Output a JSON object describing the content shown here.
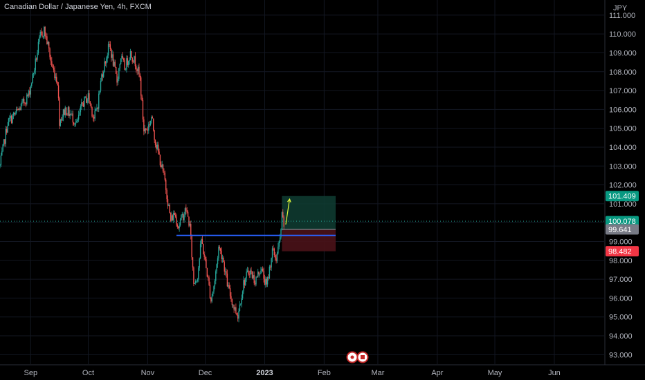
{
  "header": {
    "title": "Canadian Dollar / Japanese Yen, 4h, FXCM"
  },
  "axis": {
    "currency_label": "JPY"
  },
  "markers": {
    "event_icons": [
      "red-flag-icon",
      "red-flag-icon"
    ]
  },
  "colors": {
    "background": "#000000",
    "up_candle": "#26a69a",
    "down_candle": "#ef5350",
    "support_line": "#2962ff",
    "target_arrow": "#e6ff3b",
    "profit_zone": "#0f3d33",
    "loss_zone": "#4a1218",
    "tp_tag": "#089981",
    "sl_tag": "#f23645",
    "entry_tag": "#787b86",
    "price_tag": "#089981"
  },
  "chart_data": {
    "type": "candlestick",
    "symbol": "Canadian Dollar / Japanese Yen, 4h, FXCM",
    "ylim": [
      92.5,
      111.8
    ],
    "yticks": [
      "111.000",
      "110.000",
      "109.000",
      "108.000",
      "107.000",
      "106.000",
      "105.000",
      "104.000",
      "103.000",
      "102.000",
      "101.000",
      "100.000",
      "99.000",
      "98.000",
      "97.000",
      "96.000",
      "95.000",
      "94.000",
      "93.000"
    ],
    "xticks": [
      {
        "label": "Sep",
        "day": 0
      },
      {
        "label": "Oct",
        "day": 30
      },
      {
        "label": "Nov",
        "day": 61
      },
      {
        "label": "Dec",
        "day": 91
      },
      {
        "label": "2023",
        "day": 122,
        "bold": true
      },
      {
        "label": "Feb",
        "day": 153
      },
      {
        "label": "Mar",
        "day": 181
      },
      {
        "label": "Apr",
        "day": 212
      },
      {
        "label": "May",
        "day": 242
      },
      {
        "label": "Jun",
        "day": 273
      }
    ],
    "xlim_days": [
      -16,
      299
    ],
    "price_path": [
      [
        -16,
        103.0
      ],
      [
        -12,
        105.3
      ],
      [
        -6,
        106.0
      ],
      [
        -1,
        106.8
      ],
      [
        2,
        108.2
      ],
      [
        5,
        109.9
      ],
      [
        7,
        110.2
      ],
      [
        9,
        109.4
      ],
      [
        11,
        108.3
      ],
      [
        14,
        107.5
      ],
      [
        15,
        105.4
      ],
      [
        18,
        106.0
      ],
      [
        21,
        105.7
      ],
      [
        24,
        105.2
      ],
      [
        27,
        106.3
      ],
      [
        30,
        106.7
      ],
      [
        33,
        105.5
      ],
      [
        35,
        106.3
      ],
      [
        37,
        107.8
      ],
      [
        39,
        108.6
      ],
      [
        41,
        109.4
      ],
      [
        43,
        108.5
      ],
      [
        45,
        107.5
      ],
      [
        47,
        108.8
      ],
      [
        49,
        108.2
      ],
      [
        52,
        109.0
      ],
      [
        55,
        108.4
      ],
      [
        57,
        107.6
      ],
      [
        59,
        104.9
      ],
      [
        61,
        105.0
      ],
      [
        63,
        105.6
      ],
      [
        65,
        104.3
      ],
      [
        67,
        103.5
      ],
      [
        70,
        102.2
      ],
      [
        73,
        100.1
      ],
      [
        75,
        100.5
      ],
      [
        77,
        99.8
      ],
      [
        79,
        100.3
      ],
      [
        81,
        100.7
      ],
      [
        83,
        99.8
      ],
      [
        85,
        96.8
      ],
      [
        87,
        97.2
      ],
      [
        89,
        99.1
      ],
      [
        92,
        97.3
      ],
      [
        94,
        95.9
      ],
      [
        96,
        96.9
      ],
      [
        98,
        98.7
      ],
      [
        100,
        98.2
      ],
      [
        103,
        96.5
      ],
      [
        106,
        95.5
      ],
      [
        108,
        95.1
      ],
      [
        111,
        96.8
      ],
      [
        114,
        97.5
      ],
      [
        117,
        96.9
      ],
      [
        120,
        97.6
      ],
      [
        123,
        96.6
      ],
      [
        126,
        98.5
      ],
      [
        128,
        98.1
      ],
      [
        130,
        99.1
      ],
      [
        131,
        100.3
      ],
      [
        132,
        99.9
      ]
    ],
    "current_price": 100.078,
    "support_level": 99.32,
    "support_line_days": [
      76,
      159
    ],
    "position": {
      "type": "long",
      "entry": 99.641,
      "take_profit": 101.409,
      "stop_loss": 98.482,
      "start_day": 131,
      "end_day": 159,
      "target_arrow": {
        "from": [
          133,
          99.9
        ],
        "to": [
          135,
          101.25
        ]
      }
    },
    "price_labels": [
      {
        "role": "take-profit",
        "value": "101.409"
      },
      {
        "role": "current",
        "value": "100.078"
      },
      {
        "role": "entry",
        "value": "99.641"
      },
      {
        "role": "stop-loss",
        "value": "98.482"
      }
    ]
  }
}
